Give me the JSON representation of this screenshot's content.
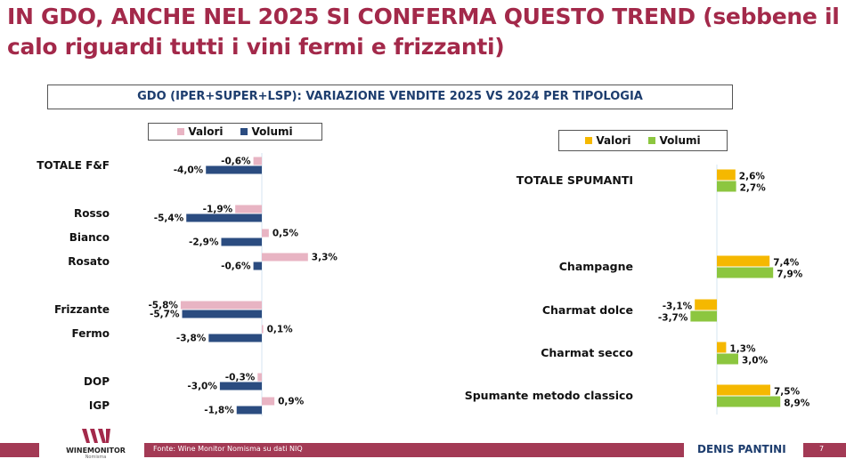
{
  "title": "IN GDO, ANCHE NEL 2025 SI CONFERMA QUESTO TREND (sebbene il calo riguardi tutti i vini fermi e frizzanti)",
  "chart_data": [
    {
      "type": "bar",
      "orientation": "horizontal",
      "title": "GDO (IPER+SUPER+LSP): VARIAZIONE VENDITE 2025 VS 2024 PER TIPOLOGIA",
      "categories": [
        "TOTALE F&F",
        "Rosso",
        "Bianco",
        "Rosato",
        "Frizzante",
        "Fermo",
        "DOP",
        "IGP"
      ],
      "series": [
        {
          "name": "Valori",
          "color": "#e8b4c3",
          "values": [
            -0.6,
            -1.9,
            0.5,
            3.3,
            -5.8,
            0.1,
            -0.3,
            0.9
          ]
        },
        {
          "name": "Volumi",
          "color": "#2b4c80",
          "values": [
            -4.0,
            -5.4,
            -2.9,
            -0.6,
            -5.7,
            -3.8,
            -3.0,
            -1.8
          ]
        }
      ],
      "labels": {
        "Valori": [
          "-0,6%",
          "-1,9%",
          "0,5%",
          "3,3%",
          "-5,8%",
          "0,1%",
          "-0,3%",
          "0,9%"
        ],
        "Volumi": [
          "-4,0%",
          "-5,4%",
          "-2,9%",
          "-0,6%",
          "-5,7%",
          "-3,8%",
          "-3,0%",
          "-1,8%"
        ]
      },
      "legend": "top"
    },
    {
      "type": "bar",
      "orientation": "horizontal",
      "categories": [
        "TOTALE SPUMANTI",
        "Champagne",
        "Charmat dolce",
        "Charmat secco",
        "Spumante metodo classico"
      ],
      "series": [
        {
          "name": "Valori",
          "color": "#f5b800",
          "values": [
            2.6,
            7.4,
            -3.1,
            1.3,
            7.5
          ]
        },
        {
          "name": "Volumi",
          "color": "#8cc63f",
          "values": [
            2.7,
            7.9,
            -3.7,
            3.0,
            8.9
          ]
        }
      ],
      "labels": {
        "Valori": [
          "2,6%",
          "7,4%",
          "-3,1%",
          "1,3%",
          "7,5%"
        ],
        "Volumi": [
          "2,7%",
          "7,9%",
          "-3,7%",
          "3,0%",
          "8,9%"
        ]
      },
      "legend": "top"
    }
  ],
  "footer": {
    "source": "Fonte: Wine Monitor Nomisma su dati NIQ",
    "author": "DENIS PANTINI",
    "page": "7",
    "logo_text": "WINEMONITOR",
    "logo_sub": "Nomisma"
  }
}
